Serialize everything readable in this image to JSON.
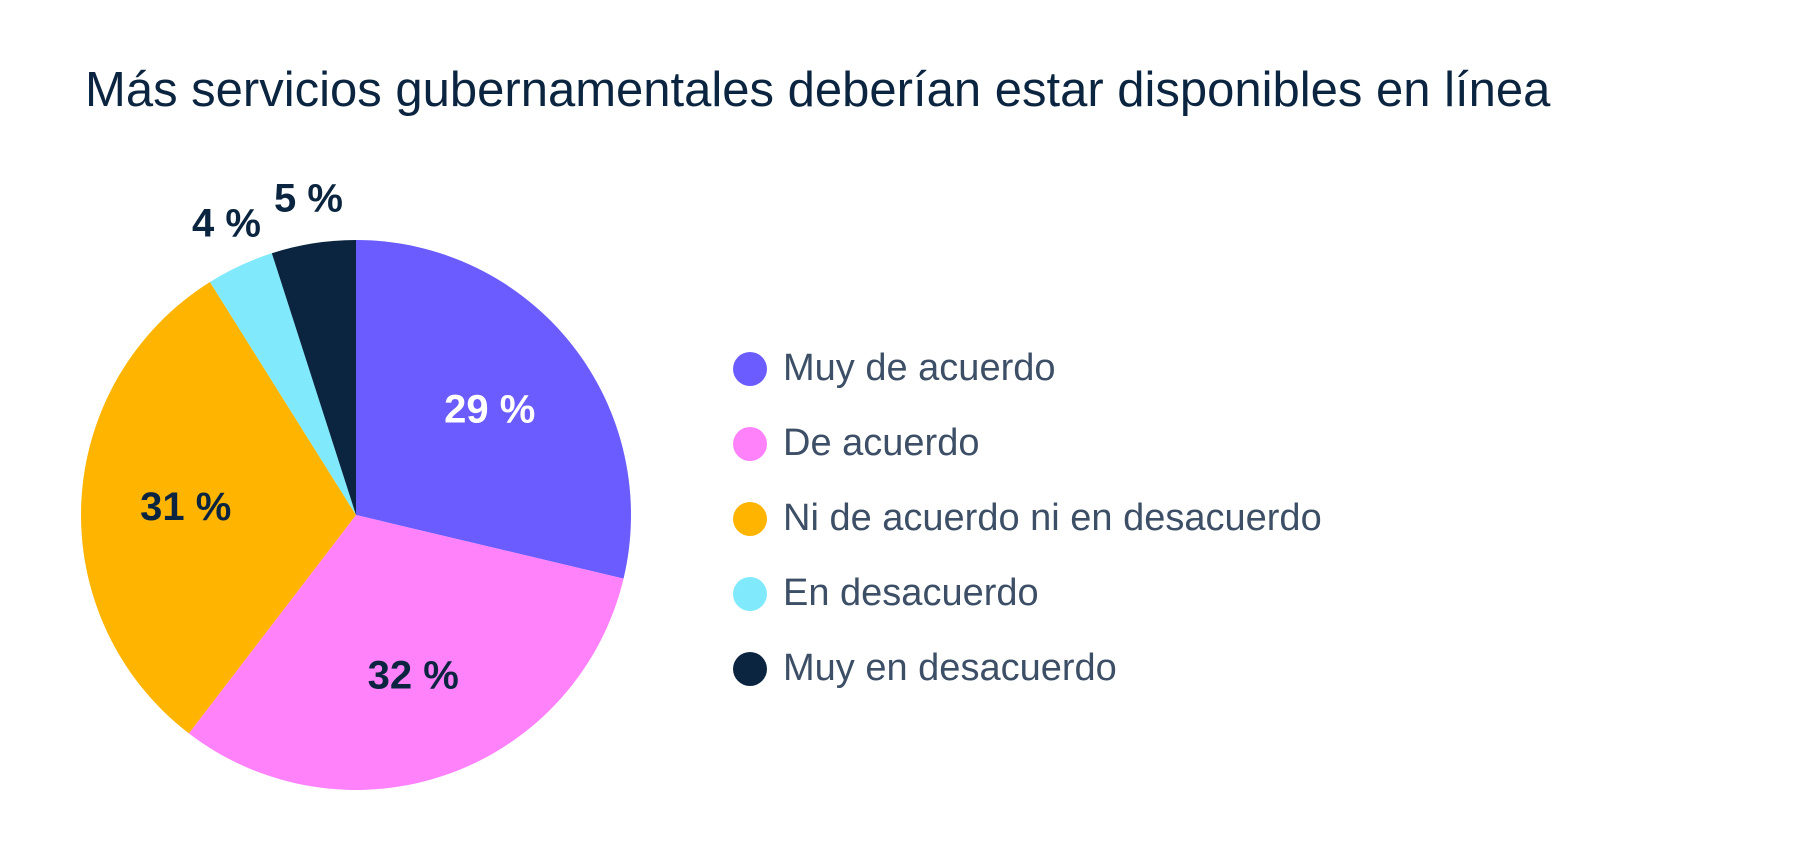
{
  "chart_data": {
    "type": "pie",
    "title": "Más servicios gubernamentales deberían estar disponibles en línea",
    "legend_position": "right",
    "slices": [
      {
        "name": "Muy de acuerdo",
        "value": 29,
        "label": "29 %",
        "color": "#6b5cff",
        "label_color": "#ffffff",
        "label_outside": false
      },
      {
        "name": "De acuerdo",
        "value": 32,
        "label": "32 %",
        "color": "#ff82fa",
        "label_color": "#0b2540",
        "label_outside": false
      },
      {
        "name": "Ni de acuerdo ni en desacuerdo",
        "value": 31,
        "label": "31 %",
        "color": "#ffb500",
        "label_color": "#0b2540",
        "label_outside": false
      },
      {
        "name": "En desacuerdo",
        "value": 4,
        "label": "4 %",
        "color": "#80eafc",
        "label_color": "#0b2540",
        "label_outside": true
      },
      {
        "name": "Muy en desacuerdo",
        "value": 5,
        "label": "5 %",
        "color": "#0b2540",
        "label_color": "#0b2540",
        "label_outside": true
      }
    ]
  }
}
